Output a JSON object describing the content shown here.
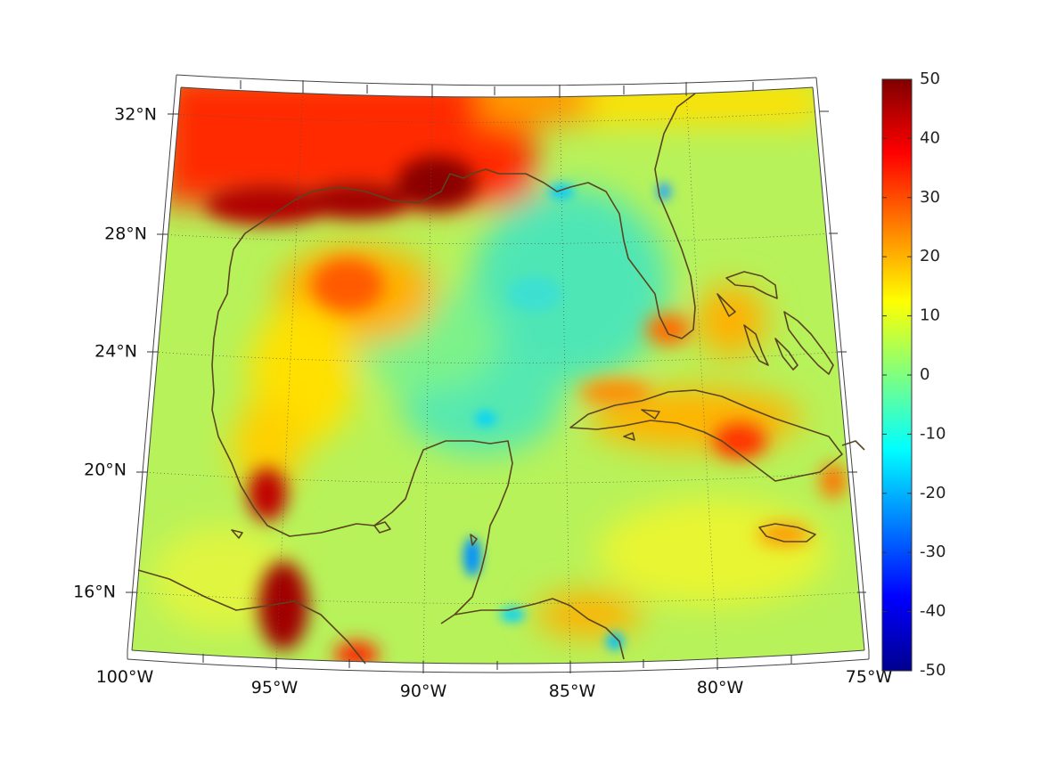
{
  "map": {
    "projection": "conic",
    "lat_labels": [
      "32°N",
      "28°N",
      "24°N",
      "20°N",
      "16°N"
    ],
    "lon_labels": [
      "100°W",
      "95°W",
      "90°W",
      "85°W",
      "80°W",
      "75°W"
    ],
    "lat_values": [
      32,
      28,
      24,
      20,
      16
    ],
    "lon_values": [
      -100,
      -95,
      -90,
      -85,
      -80,
      -75
    ],
    "grid": "dotted",
    "coastline_color": "#5a4520"
  },
  "colorbar": {
    "colormap": "jet",
    "min": -50,
    "max": 50,
    "ticks": [
      "50",
      "40",
      "30",
      "20",
      "10",
      "0",
      "-10",
      "-20",
      "-30",
      "-40",
      "-50"
    ]
  },
  "field_hotspots": [
    {
      "region": "Texas/Louisiana coast",
      "value": 45
    },
    {
      "region": "Mississippi delta",
      "value": 50
    },
    {
      "region": "Northwest Texas interior",
      "value": 35
    },
    {
      "region": "Bay of Campeche coast",
      "value": 35
    },
    {
      "region": "Isthmus of Tehuantepec",
      "value": 50
    },
    {
      "region": "Cuba",
      "value": 30
    },
    {
      "region": "Southern Florida",
      "value": 25
    },
    {
      "region": "Yucatan east coast",
      "value": -20
    },
    {
      "region": "Open Gulf",
      "value": 0
    }
  ]
}
